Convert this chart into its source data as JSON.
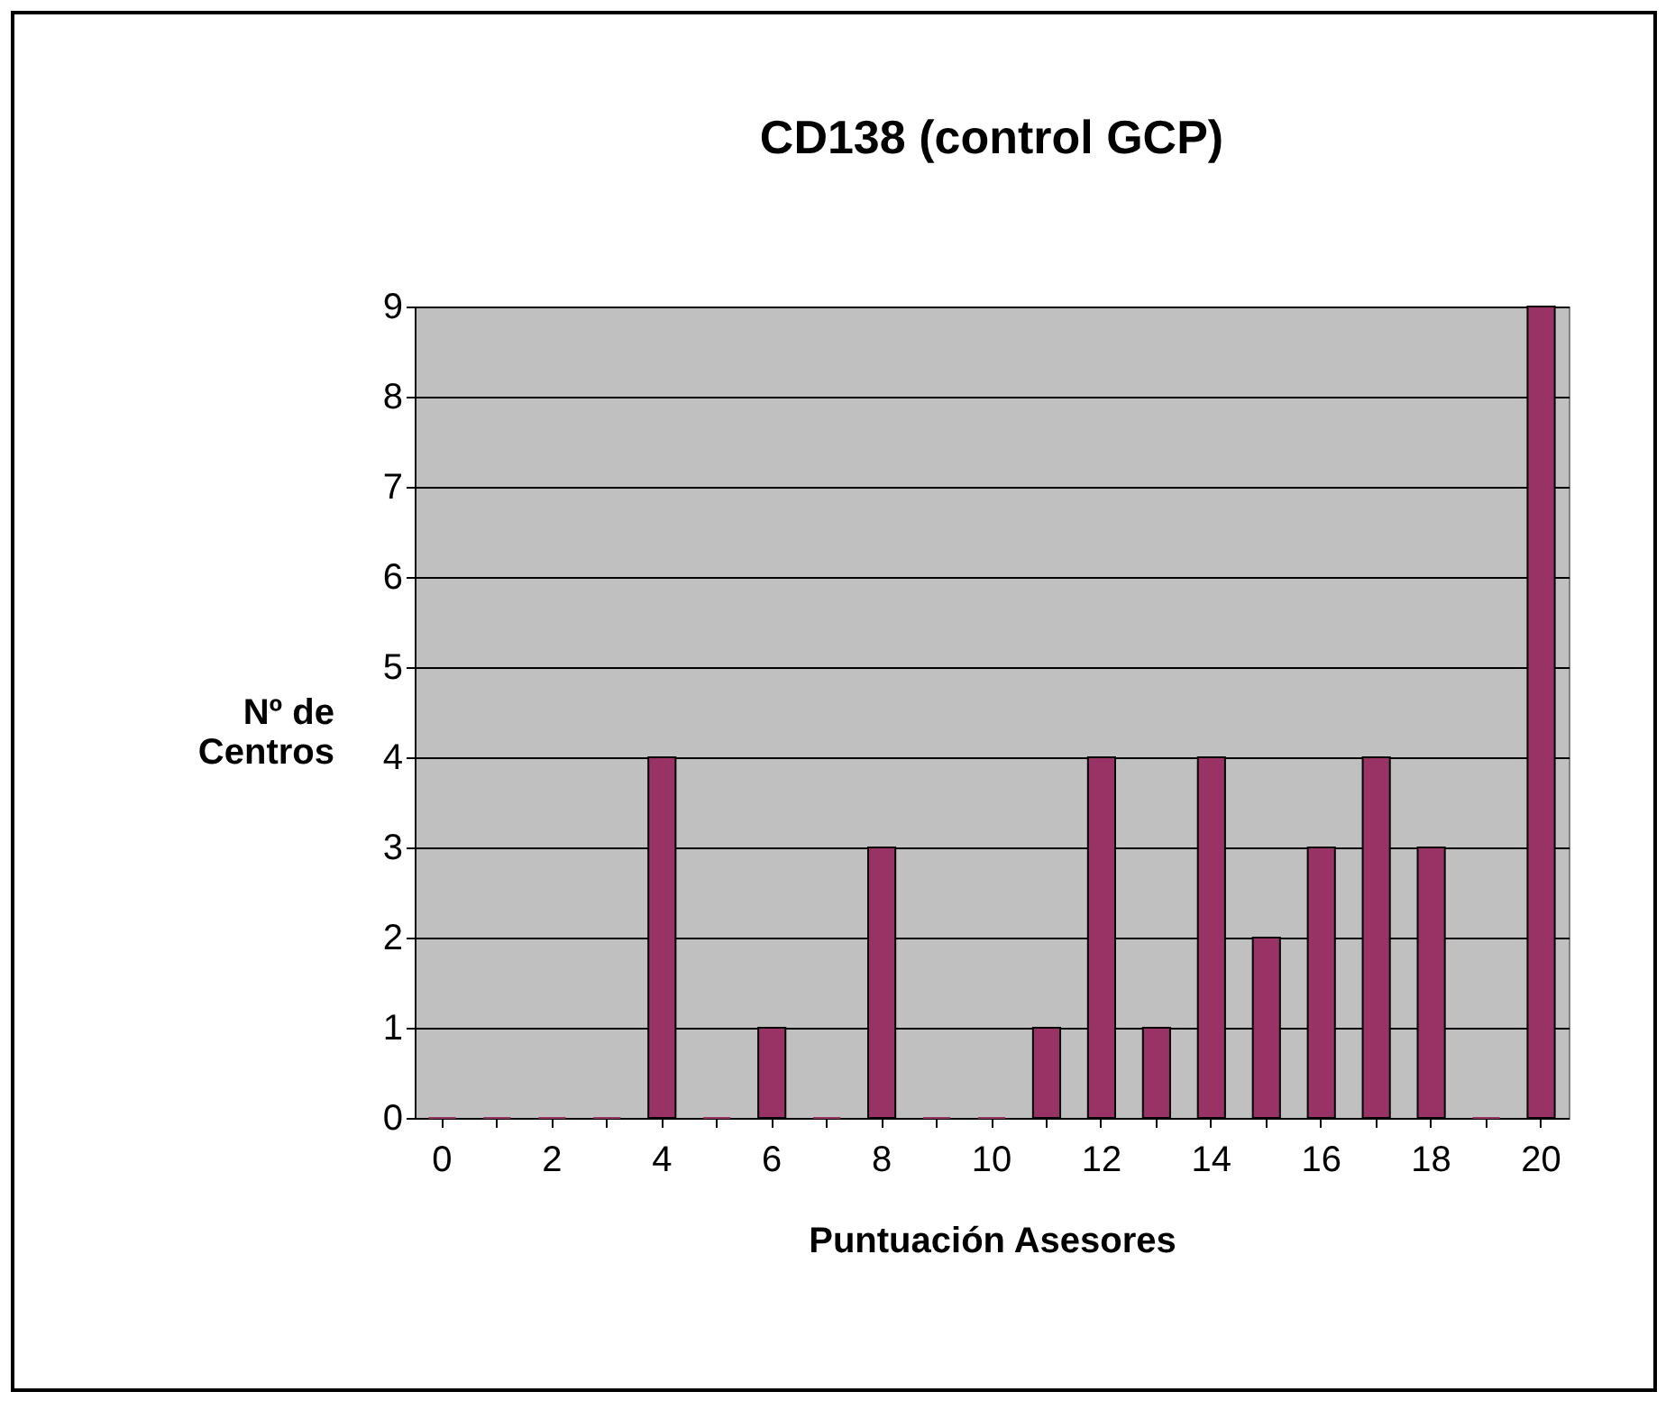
{
  "chart_data": {
    "type": "bar",
    "title": "CD138 (control GCP)",
    "xlabel": "Puntuación Asesores",
    "ylabel": "Nº de\nCentros",
    "categories": [
      "0",
      null,
      "2",
      null,
      "4",
      null,
      "6",
      null,
      "8",
      null,
      "10",
      null,
      "12",
      null,
      "14",
      null,
      "16",
      null,
      "18",
      null,
      "20"
    ],
    "values": [
      0,
      0,
      0,
      0,
      4,
      0,
      1,
      0,
      3,
      0,
      0,
      1,
      4,
      1,
      4,
      2,
      3,
      4,
      3,
      0,
      9
    ],
    "color": "#993366",
    "ylim": [
      0,
      9
    ],
    "yticks": [
      0,
      1,
      2,
      3,
      4,
      5,
      6,
      7,
      8,
      9
    ],
    "grid": "y"
  }
}
